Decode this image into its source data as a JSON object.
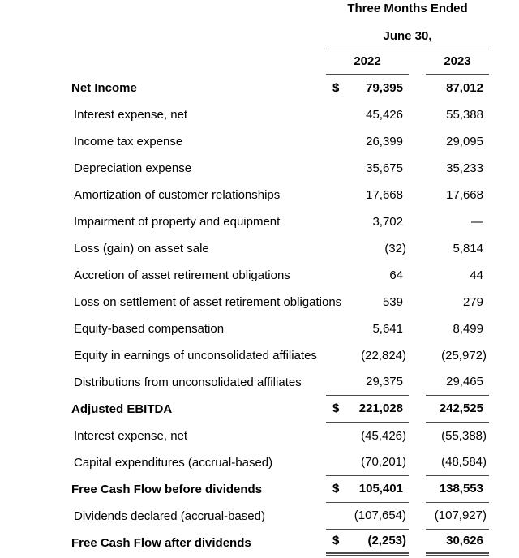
{
  "header": {
    "line1": "Three Months Ended",
    "line2": "June 30,",
    "col_2022": "2022",
    "col_2023": "2023"
  },
  "rows": [
    {
      "label": "Net Income",
      "dollar": "$",
      "v2022": "79,395",
      "v2023": "87,012"
    },
    {
      "label": "Interest expense, net",
      "dollar": "",
      "v2022": "45,426",
      "v2023": "55,388"
    },
    {
      "label": "Income tax expense",
      "dollar": "",
      "v2022": "26,399",
      "v2023": "29,095"
    },
    {
      "label": "Depreciation expense",
      "dollar": "",
      "v2022": "35,675",
      "v2023": "35,233"
    },
    {
      "label": "Amortization of customer relationships",
      "dollar": "",
      "v2022": "17,668",
      "v2023": "17,668"
    },
    {
      "label": "Impairment of property and equipment",
      "dollar": "",
      "v2022": "3,702",
      "v2023": "—"
    },
    {
      "label": "Loss (gain) on asset sale",
      "dollar": "",
      "v2022": "(32)",
      "v2023": "5,814"
    },
    {
      "label": "Accretion of asset retirement obligations",
      "dollar": "",
      "v2022": "64",
      "v2023": "44"
    },
    {
      "label": "Loss on settlement of asset retirement obligations",
      "dollar": "",
      "v2022": "539",
      "v2023": "279"
    },
    {
      "label": "Equity-based compensation",
      "dollar": "",
      "v2022": "5,641",
      "v2023": "8,499"
    },
    {
      "label": "Equity in earnings of unconsolidated affiliates",
      "dollar": "",
      "v2022": "(22,824)",
      "v2023": "(25,972)"
    },
    {
      "label": "Distributions from unconsolidated affiliates",
      "dollar": "",
      "v2022": "29,375",
      "v2023": "29,465"
    },
    {
      "label": "Adjusted EBITDA",
      "dollar": "$",
      "v2022": "221,028",
      "v2023": "242,525"
    },
    {
      "label": "Interest expense, net",
      "dollar": "",
      "v2022": "(45,426)",
      "v2023": "(55,388)"
    },
    {
      "label": "Capital expenditures (accrual-based)",
      "dollar": "",
      "v2022": "(70,201)",
      "v2023": "(48,584)"
    },
    {
      "label": "Free Cash Flow before dividends",
      "dollar": "$",
      "v2022": "105,401",
      "v2023": "138,553"
    },
    {
      "label": "Dividends declared (accrual-based)",
      "dollar": "",
      "v2022": "(107,654)",
      "v2023": "(107,927)"
    },
    {
      "label": "Free Cash Flow after dividends",
      "dollar": "$",
      "v2022": "(2,253)",
      "v2023": "30,626"
    }
  ]
}
